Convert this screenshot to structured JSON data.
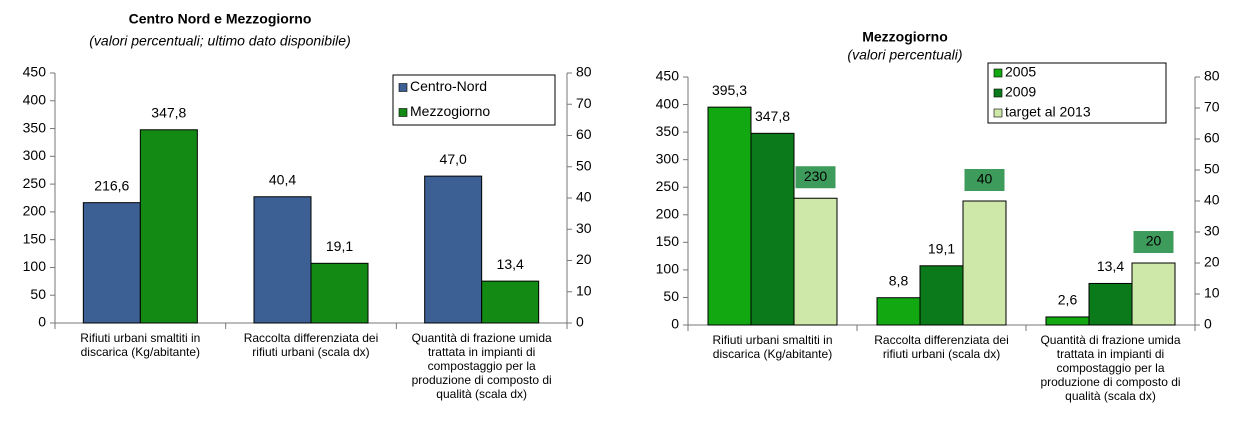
{
  "chart_data": [
    {
      "type": "bar",
      "title": "Centro Nord e Mezzogiorno",
      "subtitle": "(valori percentuali; ultimo dato disponibile)",
      "categories": [
        "Rifiuti urbani smaltiti in discarica (Kg/abitante)",
        "Raccolta differenziata dei rifiuti urbani (scala dx)",
        "Quantità di frazione umida trattata in impianti di compostaggio per la produzione di composto di qualità (scala dx)"
      ],
      "category_axes": [
        "y",
        "y2",
        "y2"
      ],
      "series": [
        {
          "name": "Centro-Nord",
          "color": "#3c5f94",
          "values": [
            216.6,
            40.4,
            47.0
          ],
          "value_labels": [
            "216,6",
            "40,4",
            "47,0"
          ]
        },
        {
          "name": "Mezzogiorno",
          "color": "#138a13",
          "values": [
            347.8,
            19.1,
            13.4
          ],
          "value_labels": [
            "347,8",
            "19,1",
            "13,4"
          ]
        }
      ],
      "ylim": [
        0,
        450
      ],
      "yticks": [
        0,
        50,
        100,
        150,
        200,
        250,
        300,
        350,
        400,
        450
      ],
      "y2lim": [
        0,
        80
      ],
      "y2ticks": [
        0,
        10,
        20,
        30,
        40,
        50,
        60,
        70,
        80
      ],
      "legend": "top-right"
    },
    {
      "type": "bar",
      "title": "Mezzogiorno",
      "subtitle": "(valori percentuali)",
      "categories": [
        "Rifiuti urbani smaltiti in discarica (Kg/abitante)",
        "Raccolta differenziata dei rifiuti urbani (scala dx)",
        "Quantità di frazione umida trattata in impianti di compostaggio per la produzione di composto di qualità (scala dx)"
      ],
      "category_axes": [
        "y",
        "y2",
        "y2"
      ],
      "series": [
        {
          "name": "2005",
          "color": "#12a812",
          "values": [
            395.3,
            8.8,
            2.6
          ],
          "value_labels": [
            "395,3",
            "8,8",
            "2,6"
          ]
        },
        {
          "name": "2009",
          "color": "#0b7a1a",
          "values": [
            347.8,
            19.1,
            13.4
          ],
          "value_labels": [
            "347,8",
            "19,1",
            "13,4"
          ]
        },
        {
          "name": "target al 2013",
          "color": "#cde8a8",
          "values": [
            230,
            40,
            20
          ],
          "label_box": "#3d9b5c"
        }
      ],
      "ylim": [
        0,
        450
      ],
      "yticks": [
        0,
        50,
        100,
        150,
        200,
        250,
        300,
        350,
        400,
        450
      ],
      "y2lim": [
        0,
        80
      ],
      "y2ticks": [
        0,
        10,
        20,
        30,
        40,
        50,
        60,
        70,
        80
      ],
      "legend": "top-right"
    }
  ]
}
